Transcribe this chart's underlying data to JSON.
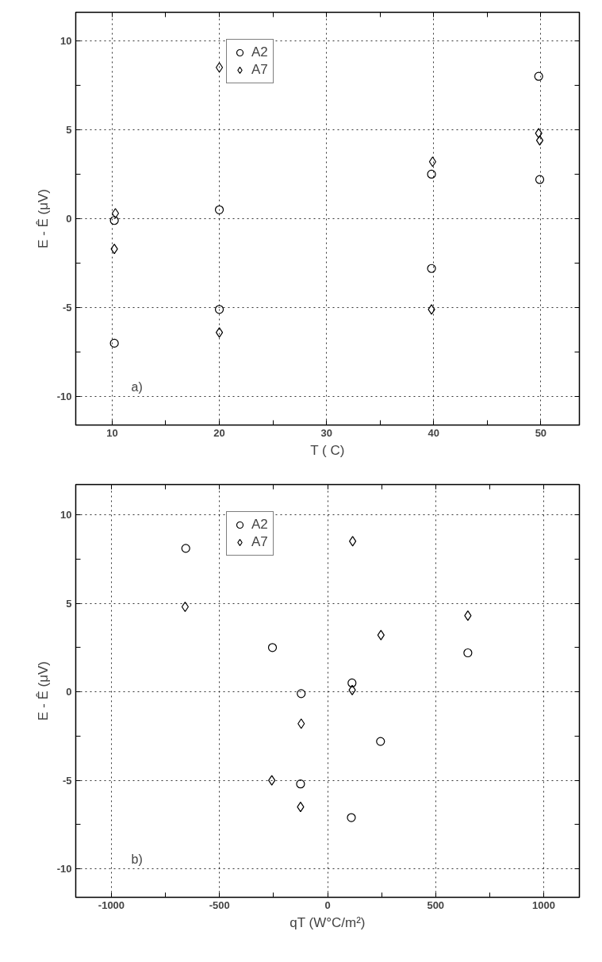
{
  "chart_data": [
    {
      "type": "scatter",
      "xlabel": "T ( C)",
      "ylabel": "E - Ê (μV)",
      "annotations": [
        "a)"
      ],
      "xlim": [
        6.6,
        53.6
      ],
      "ylim": [
        -11.6,
        11.6
      ],
      "xticks": [
        10,
        {
          "value": 15,
          "label": null
        },
        20,
        {
          "value": 25,
          "label": null
        },
        30,
        {
          "value": 35,
          "label": null
        },
        40,
        {
          "value": 45,
          "label": null
        },
        50
      ],
      "yticks": [
        -10,
        {
          "value": -7.5,
          "label": null
        },
        -5,
        {
          "value": -2.5,
          "label": null
        },
        0,
        {
          "value": 2.5,
          "label": null
        },
        5,
        {
          "value": 7.5,
          "label": null
        },
        10
      ],
      "grid": true,
      "legend": "top",
      "series": [
        {
          "name": "A2",
          "color": "#000000",
          "marker": "circle",
          "x": [
            10.2,
            10.2,
            20,
            20,
            39.8,
            39.8,
            49.8,
            49.9
          ],
          "values": [
            -0.1,
            -7.0,
            0.5,
            -5.1,
            2.5,
            -2.8,
            8.0,
            2.2
          ]
        },
        {
          "name": "A7",
          "color": "#000000",
          "marker": "diamond",
          "x": [
            10.3,
            10.2,
            20,
            20,
            39.9,
            39.8,
            49.8,
            49.9
          ],
          "values": [
            0.3,
            -1.7,
            8.5,
            -6.4,
            3.2,
            -5.1,
            4.8,
            4.4
          ]
        }
      ]
    },
    {
      "type": "scatter",
      "xlabel": "qT (W°C/m²)",
      "ylabel": "E - Ê (μV)",
      "annotations": [
        "b)"
      ],
      "xlim": [
        -1165,
        1165
      ],
      "ylim": [
        -11.6,
        11.7
      ],
      "xticks": [
        -1000,
        {
          "value": -750,
          "label": null
        },
        -500,
        {
          "value": -250,
          "label": null
        },
        0,
        {
          "value": 250,
          "label": null
        },
        500,
        {
          "value": 750,
          "label": null
        },
        1000
      ],
      "yticks": [
        -10,
        {
          "value": -7.5,
          "label": null
        },
        -5,
        {
          "value": -2.5,
          "label": null
        },
        0,
        {
          "value": 2.5,
          "label": null
        },
        5,
        {
          "value": 7.5,
          "label": null
        },
        10
      ],
      "grid": true,
      "legend": "top",
      "series": [
        {
          "name": "A2",
          "color": "#000000",
          "marker": "circle",
          "x": [
            -656,
            -255,
            -122,
            113,
            245,
            -125,
            110,
            649
          ],
          "values": [
            8.1,
            2.5,
            -0.1,
            0.5,
            -2.8,
            -5.2,
            -7.1,
            2.2
          ]
        },
        {
          "name": "A7",
          "color": "#000000",
          "marker": "diamond",
          "x": [
            -659,
            116,
            247,
            649,
            114,
            -122,
            -258,
            -125
          ],
          "values": [
            4.8,
            8.5,
            3.2,
            4.3,
            0.1,
            -1.8,
            -5.0,
            -6.5
          ]
        }
      ]
    }
  ]
}
